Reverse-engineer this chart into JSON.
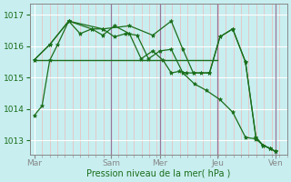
{
  "bg_color": "#c8eef0",
  "grid_color_major": "#ffffff",
  "grid_color_minor": "#f0b8b8",
  "line_color": "#1a6e1a",
  "vline_color": "#997799",
  "ylim": [
    1012.55,
    1017.35
  ],
  "yticks": [
    1013,
    1014,
    1015,
    1016,
    1017
  ],
  "xlabel": "Pression niveau de la mer( hPa )",
  "xtick_positions": [
    0,
    0.33,
    0.54,
    0.79,
    1.04
  ],
  "xtick_labels": [
    "Mar",
    "Sam",
    "Mer",
    "Jeu",
    "Ven"
  ],
  "vlines": [
    0.33,
    0.54,
    0.79,
    1.04
  ],
  "s1x": [
    0.0,
    0.033,
    0.066,
    0.1,
    0.148,
    0.197,
    0.247,
    0.295,
    0.345,
    0.394,
    0.443,
    0.492,
    0.541,
    0.59,
    0.64,
    0.69,
    0.74,
    0.8,
    0.855,
    0.91,
    0.955,
    0.985,
    1.015,
    1.04
  ],
  "s1y": [
    1013.8,
    1014.1,
    1015.55,
    1016.05,
    1016.8,
    1016.4,
    1016.55,
    1016.55,
    1016.3,
    1016.4,
    1016.35,
    1015.6,
    1015.85,
    1015.9,
    1015.15,
    1014.8,
    1014.6,
    1014.3,
    1013.9,
    1013.1,
    1013.05,
    1012.85,
    1012.75,
    1012.65
  ],
  "s2x": [
    0.0,
    0.79
  ],
  "s2y": [
    1015.57,
    1015.57
  ],
  "s3x": [
    0.0,
    0.066,
    0.148,
    0.247,
    0.295,
    0.345,
    0.41,
    0.46,
    0.51,
    0.555,
    0.59,
    0.625,
    0.655,
    0.685,
    0.72,
    0.755,
    0.8,
    0.855,
    0.91,
    0.955,
    0.985,
    1.015,
    1.04
  ],
  "s3y": [
    1015.57,
    1016.05,
    1016.8,
    1016.55,
    1016.35,
    1016.65,
    1016.4,
    1015.6,
    1015.85,
    1015.55,
    1015.15,
    1015.2,
    1015.15,
    1015.15,
    1015.15,
    1015.15,
    1016.3,
    1016.55,
    1015.5,
    1013.1,
    1012.85,
    1012.75,
    1012.65
  ],
  "s4x": [
    0.0,
    0.066,
    0.148,
    0.295,
    0.41,
    0.51,
    0.59,
    0.64,
    0.685,
    0.755,
    0.8,
    0.855,
    0.91,
    0.955,
    0.985,
    1.015,
    1.04
  ],
  "s4y": [
    1015.57,
    1016.05,
    1016.8,
    1016.55,
    1016.65,
    1016.35,
    1016.8,
    1015.9,
    1015.15,
    1015.15,
    1016.3,
    1016.55,
    1015.5,
    1013.1,
    1012.85,
    1012.75,
    1012.65
  ]
}
